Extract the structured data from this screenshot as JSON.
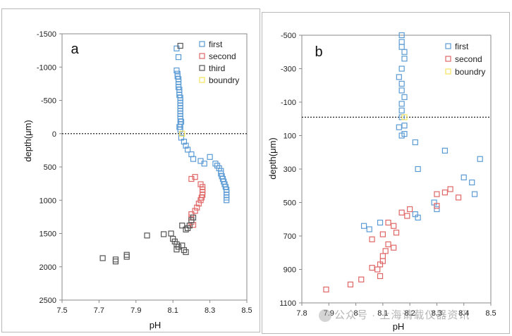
{
  "chart_data": [
    {
      "type": "scatter",
      "panel_label": "a",
      "xlabel": "pH",
      "ylabel": "depth(μm)",
      "xlim": [
        7.5,
        8.5
      ],
      "ylim": [
        -1500,
        2500
      ],
      "y_inverted": true,
      "xticks": [
        "7.5",
        "7.7",
        "7.9",
        "8.1",
        "8.3",
        "8.5"
      ],
      "yticks": [
        "-1500",
        "-1000",
        "-500",
        "0",
        "500",
        "1000",
        "1500",
        "2000",
        "2500"
      ],
      "reference_line": {
        "y": 0,
        "style": "dotted"
      },
      "legend_position": "top-right",
      "series": [
        {
          "name": "first",
          "color": "#5b9bd5",
          "points": [
            [
              8.12,
              -950
            ],
            [
              8.125,
              -900
            ],
            [
              8.125,
              -860
            ],
            [
              8.13,
              -820
            ],
            [
              8.13,
              -780
            ],
            [
              8.13,
              -740
            ],
            [
              8.13,
              -700
            ],
            [
              8.135,
              -660
            ],
            [
              8.135,
              -620
            ],
            [
              8.135,
              -580
            ],
            [
              8.14,
              -540
            ],
            [
              8.14,
              -500
            ],
            [
              8.14,
              -460
            ],
            [
              8.14,
              -420
            ],
            [
              8.14,
              -380
            ],
            [
              8.14,
              -340
            ],
            [
              8.14,
              -300
            ],
            [
              8.14,
              -260
            ],
            [
              8.14,
              -220
            ],
            [
              8.145,
              -180
            ],
            [
              8.14,
              -140
            ],
            [
              8.135,
              -100
            ],
            [
              8.14,
              -60
            ],
            [
              8.145,
              60
            ],
            [
              8.16,
              120
            ],
            [
              8.17,
              180
            ],
            [
              8.18,
              240
            ],
            [
              8.2,
              310
            ],
            [
              8.21,
              380
            ],
            [
              8.25,
              410
            ],
            [
              8.27,
              450
            ],
            [
              8.3,
              350
            ],
            [
              8.33,
              450
            ],
            [
              8.34,
              480
            ],
            [
              8.35,
              520
            ],
            [
              8.36,
              560
            ],
            [
              8.36,
              600
            ],
            [
              8.365,
              640
            ],
            [
              8.37,
              680
            ],
            [
              8.375,
              720
            ],
            [
              8.38,
              760
            ],
            [
              8.385,
              800
            ],
            [
              8.39,
              840
            ],
            [
              8.39,
              880
            ],
            [
              8.39,
              920
            ],
            [
              8.39,
              960
            ],
            [
              8.39,
              1000
            ],
            [
              8.12,
              -1280
            ],
            [
              8.13,
              -1150
            ]
          ]
        },
        {
          "name": "second",
          "color": "#e06666",
          "points": [
            [
              8.2,
              680
            ],
            [
              8.22,
              650
            ],
            [
              8.25,
              760
            ],
            [
              8.26,
              800
            ],
            [
              8.26,
              840
            ],
            [
              8.26,
              880
            ],
            [
              8.26,
              920
            ],
            [
              8.255,
              960
            ],
            [
              8.25,
              1000
            ],
            [
              8.24,
              1050
            ],
            [
              8.23,
              1110
            ],
            [
              8.22,
              1160
            ],
            [
              8.2,
              1210
            ],
            [
              8.2,
              1260
            ],
            [
              8.21,
              1370
            ],
            [
              8.2,
              1330
            ]
          ]
        },
        {
          "name": "third",
          "color": "#555555",
          "points": [
            [
              8.14,
              -1320
            ],
            [
              8.15,
              1380
            ],
            [
              8.17,
              1440
            ],
            [
              8.18,
              1420
            ],
            [
              8.19,
              1380
            ],
            [
              8.2,
              1300
            ],
            [
              8.21,
              1260
            ],
            [
              8.09,
              1500
            ],
            [
              8.05,
              1510
            ],
            [
              8.1,
              1580
            ],
            [
              8.11,
              1620
            ],
            [
              8.12,
              1660
            ],
            [
              8.13,
              1700
            ],
            [
              8.12,
              1740
            ],
            [
              8.15,
              1680
            ],
            [
              8.16,
              1750
            ],
            [
              8.17,
              1780
            ],
            [
              7.96,
              1530
            ],
            [
              7.85,
              1820
            ],
            [
              7.85,
              1850
            ],
            [
              7.72,
              1870
            ],
            [
              7.79,
              1890
            ],
            [
              7.79,
              1920
            ]
          ]
        },
        {
          "name": "boundry",
          "color": "#f2e35e",
          "points": [
            [
              8.15,
              0
            ]
          ]
        }
      ]
    },
    {
      "type": "scatter",
      "panel_label": "b",
      "xlabel": "pH",
      "ylabel": "depth(μm)",
      "xlim": [
        7.8,
        8.5
      ],
      "ylim": [
        -500,
        1100
      ],
      "y_inverted": true,
      "xticks": [
        "7.8",
        "7.9",
        "8",
        "8.1",
        "8.2",
        "8.3",
        "8.4",
        "8.5"
      ],
      "yticks": [
        "-500",
        "-300",
        "-100",
        "100",
        "300",
        "500",
        "700",
        "900",
        "1100"
      ],
      "reference_line": {
        "y": -10,
        "style": "dotted"
      },
      "legend_position": "top-right",
      "series": [
        {
          "name": "first",
          "color": "#5b9bd5",
          "points": [
            [
              8.17,
              -500
            ],
            [
              8.17,
              -460
            ],
            [
              8.17,
              -430
            ],
            [
              8.18,
              -400
            ],
            [
              8.18,
              -360
            ],
            [
              8.17,
              -300
            ],
            [
              8.16,
              -250
            ],
            [
              8.17,
              -210
            ],
            [
              8.17,
              -170
            ],
            [
              8.18,
              -130
            ],
            [
              8.17,
              -90
            ],
            [
              8.17,
              -50
            ],
            [
              8.17,
              -10
            ],
            [
              8.18,
              40
            ],
            [
              8.18,
              90
            ],
            [
              8.16,
              50
            ],
            [
              8.17,
              100
            ],
            [
              8.22,
              140
            ],
            [
              8.23,
              300
            ],
            [
              8.33,
              190
            ],
            [
              8.46,
              240
            ],
            [
              8.4,
              350
            ],
            [
              8.43,
              380
            ],
            [
              8.44,
              450
            ],
            [
              8.3,
              540
            ],
            [
              8.29,
              500
            ],
            [
              8.22,
              570
            ],
            [
              8.23,
              590
            ],
            [
              8.09,
              620
            ],
            [
              8.03,
              640
            ],
            [
              8.05,
              660
            ]
          ]
        },
        {
          "name": "second",
          "color": "#e06666",
          "points": [
            [
              8.35,
              420
            ],
            [
              8.33,
              440
            ],
            [
              8.3,
              450
            ],
            [
              8.38,
              470
            ],
            [
              8.3,
              520
            ],
            [
              8.2,
              540
            ],
            [
              8.17,
              560
            ],
            [
              8.19,
              580
            ],
            [
              8.12,
              620
            ],
            [
              8.14,
              640
            ],
            [
              8.15,
              680
            ],
            [
              8.1,
              690
            ],
            [
              8.06,
              720
            ],
            [
              8.12,
              750
            ],
            [
              8.14,
              770
            ],
            [
              8.11,
              790
            ],
            [
              8.1,
              820
            ],
            [
              8.1,
              850
            ],
            [
              8.09,
              870
            ],
            [
              8.06,
              890
            ],
            [
              8.08,
              900
            ],
            [
              8.09,
              940
            ],
            [
              8.02,
              960
            ],
            [
              7.98,
              990
            ],
            [
              7.89,
              1020
            ]
          ]
        },
        {
          "name": "boundry",
          "color": "#f2e35e",
          "points": [
            [
              8.18,
              -10
            ]
          ]
        }
      ]
    }
  ],
  "watermark": {
    "text": "公众号 · 上海请载仪器资讯"
  }
}
